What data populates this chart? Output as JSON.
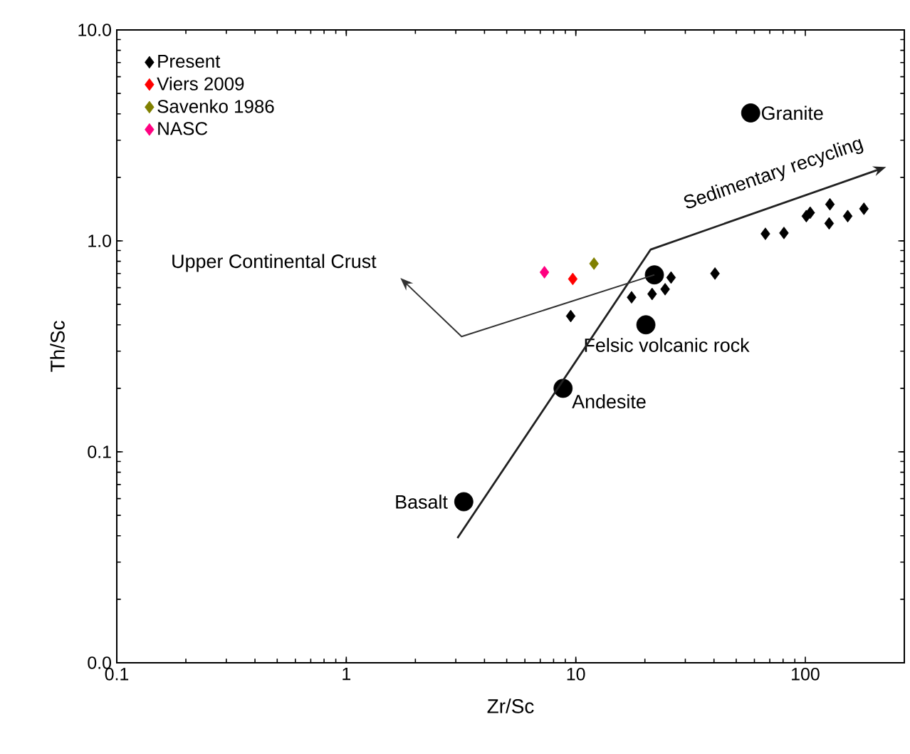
{
  "chart_data": {
    "type": "scatter",
    "xlabel": "Zr/Sc",
    "ylabel": "Th/Sc",
    "log": "xy",
    "legend": "top left",
    "xlim": [
      0.1,
      270
    ],
    "ylim": [
      0.01,
      10
    ],
    "xticks": [
      0.1,
      1,
      10,
      100
    ],
    "yticks": [
      {
        "value": 0.01,
        "label": "0.0"
      },
      {
        "value": 0.1,
        "label": "0.1"
      },
      {
        "value": 1,
        "label": "1.0"
      },
      {
        "value": 10,
        "label": "10.0"
      }
    ],
    "series": [
      {
        "name": "Present",
        "color": "#000000",
        "marker": "diamond",
        "x": [
          9.5,
          17.5,
          21.5,
          24.5,
          26,
          40.4,
          67,
          80.7,
          101,
          105,
          128,
          127,
          153,
          180
        ],
        "values": [
          0.44,
          0.54,
          0.56,
          0.59,
          0.67,
          0.7,
          1.08,
          1.09,
          1.31,
          1.36,
          1.49,
          1.21,
          1.31,
          1.42
        ]
      },
      {
        "name": "Viers 2009",
        "color": "#ff0000",
        "marker": "diamond",
        "x": [
          9.7
        ],
        "values": [
          0.66
        ]
      },
      {
        "name": "Savenko 1986",
        "color": "#808000",
        "marker": "diamond",
        "x": [
          12.0
        ],
        "values": [
          0.78
        ]
      },
      {
        "name": "NASC",
        "color": "#ff0080",
        "marker": "diamond",
        "x": [
          7.3
        ],
        "values": [
          0.71
        ]
      },
      {
        "color": "#000000",
        "marker": "circle",
        "x": [
          57.8,
          22,
          20.2,
          8.8,
          3.25
        ],
        "values": [
          4.04,
          0.69,
          0.4,
          0.2,
          0.058
        ]
      }
    ],
    "annotations": [
      {
        "text": "Granite",
        "x": 57.8,
        "y": 4.04
      },
      "Upper Continental Crust",
      {
        "text": "Felsic volcanic rock",
        "x": 20.2,
        "y": 0.4
      },
      {
        "text": "Andesite",
        "x": 8.8,
        "y": 0.2
      },
      {
        "text": "Basalt",
        "x": 3.25,
        "y": 0.058
      },
      "Sedimentary recycling"
    ]
  }
}
